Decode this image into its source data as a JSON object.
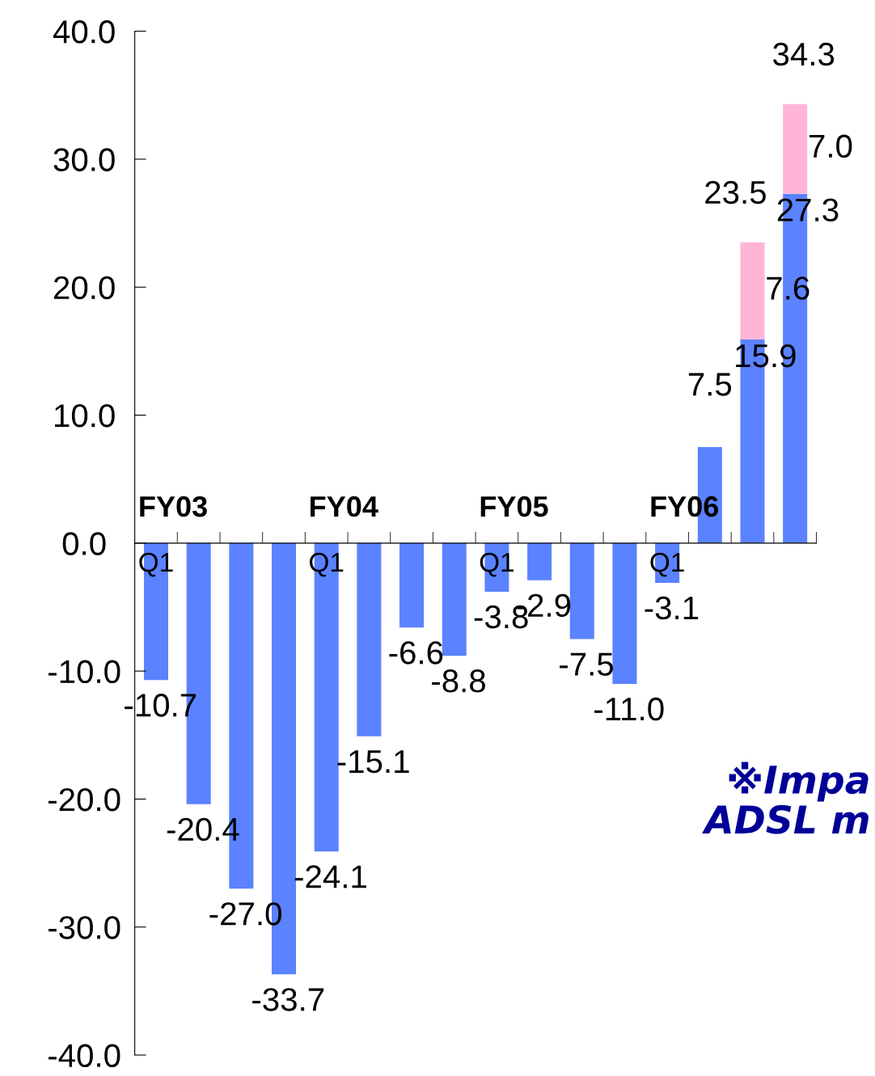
{
  "chart_data": {
    "type": "bar",
    "stacked": true,
    "categories": [
      "Q1",
      null,
      null,
      null,
      "Q1",
      null,
      null,
      null,
      "Q1",
      null,
      null,
      null,
      "Q1",
      null,
      null,
      null
    ],
    "series": [
      {
        "color": "#5b82ff",
        "values": [
          -10.7,
          -20.4,
          -27.0,
          -33.7,
          -24.1,
          -15.1,
          -6.6,
          -8.8,
          -3.8,
          -2.9,
          -7.5,
          -11.0,
          -3.1,
          7.5,
          15.9,
          27.3
        ],
        "value_labels": [
          "-10.7",
          "-20.4",
          "-27.0",
          "-33.7",
          "-24.1",
          "-15.1",
          "-6.6",
          "-8.8",
          "-3.8",
          "-2.9",
          "-7.5",
          "-11.0",
          "-3.1",
          "7.5",
          "15.9",
          "27.3"
        ]
      },
      {
        "color": "#ffb6d6",
        "values": [
          null,
          null,
          null,
          null,
          null,
          null,
          null,
          null,
          null,
          null,
          null,
          null,
          null,
          null,
          7.6,
          7.0
        ],
        "value_labels": [
          null,
          null,
          null,
          null,
          null,
          null,
          null,
          null,
          null,
          null,
          null,
          null,
          null,
          null,
          "7.6",
          "7.0"
        ]
      }
    ],
    "totals": [
      null,
      null,
      null,
      null,
      null,
      null,
      null,
      null,
      null,
      null,
      null,
      null,
      null,
      null,
      "23.5",
      "34.3"
    ],
    "ylim": [
      -40.0,
      40.0
    ],
    "yticks": [
      {
        "value": -40,
        "label": "-40.0"
      },
      {
        "value": -30,
        "label": "-30.0"
      },
      {
        "value": -20,
        "label": "-20.0"
      },
      {
        "value": -10,
        "label": "-10.0"
      },
      {
        "value": 0,
        "label": "0.0"
      },
      {
        "value": 10,
        "label": "10.0"
      },
      {
        "value": 20,
        "label": "20.0"
      },
      {
        "value": 30,
        "label": "30.0"
      },
      {
        "value": 40,
        "label": "40.0"
      }
    ],
    "grid": false,
    "annotations": [
      "FY03",
      "FY04",
      "FY05",
      "FY06",
      "※Impa\nADSL m"
    ]
  }
}
